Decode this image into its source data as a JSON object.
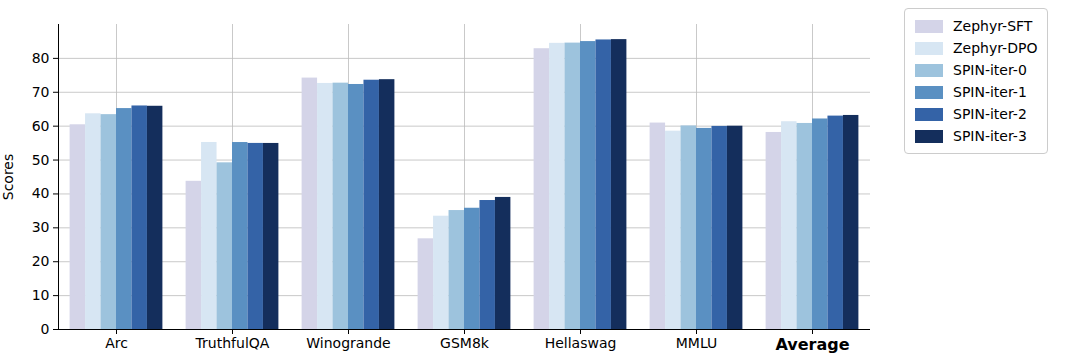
{
  "chart_data": {
    "type": "bar",
    "categories": [
      "Arc",
      "TruthfulQA",
      "Winogrande",
      "GSM8k",
      "Hellaswag",
      "MMLU",
      "Average"
    ],
    "y_label": "Scores",
    "ylim": [
      0,
      90
    ],
    "yticks": [
      0,
      10,
      20,
      30,
      40,
      50,
      60,
      70,
      80
    ],
    "grid": true,
    "legend": "outside right",
    "series": [
      {
        "name": "Zephyr-SFT",
        "color": "#d4d4e8",
        "values": [
          60.41,
          43.73,
          74.19,
          26.76,
          82.85,
          60.92,
          58.14
        ]
      },
      {
        "name": "Zephyr-DPO",
        "color": "#d7e6f3",
        "values": [
          63.65,
          55.19,
          72.61,
          33.43,
          84.44,
          58.52,
          61.31
        ]
      },
      {
        "name": "SPIN-iter-0",
        "color": "#9dc3dd",
        "values": [
          63.4,
          49.18,
          72.69,
          35.1,
          84.51,
          60.07,
          60.8
        ]
      },
      {
        "name": "SPIN-iter-1",
        "color": "#5a90c2",
        "values": [
          65.19,
          55.17,
          72.3,
          35.78,
          84.96,
          59.34,
          62.12
        ]
      },
      {
        "name": "SPIN-iter-2",
        "color": "#3463a7",
        "values": [
          65.96,
          54.91,
          73.56,
          38.06,
          85.44,
          59.93,
          62.97
        ]
      },
      {
        "name": "SPIN-iter-3",
        "color": "#142e5c",
        "values": [
          65.87,
          54.9,
          73.72,
          38.97,
          85.54,
          59.99,
          63.16
        ]
      }
    ]
  }
}
